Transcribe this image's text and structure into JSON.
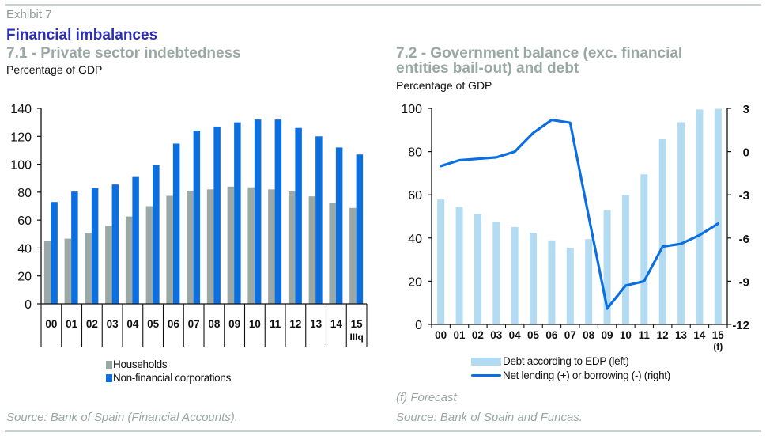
{
  "header": {
    "exhibit": "Exhibit 7",
    "title": "Financial imbalances"
  },
  "colors": {
    "households": "#9ba9a6",
    "corporations": "#0b6fe0",
    "debt": "#b3dcf3",
    "net_lending": "#0b6fe0",
    "title": "#2a2db8",
    "subtitle": "#9aa8a4"
  },
  "panel1": {
    "title": "7.1 - Private sector indebtedness",
    "unit": "Percentage of GDP",
    "source": "Source: Bank of Spain (Financial Accounts).",
    "legend": [
      "Households",
      "Non-financial corporations"
    ]
  },
  "panel2": {
    "title_line1": "7.2 - Government balance (exc. financial",
    "title_line2": "entities bail-out) and debt",
    "unit": "Percentage of GDP",
    "note": "(f) Forecast",
    "source": "Source: Bank of Spain and Funcas.",
    "legend": [
      "Debt according to EDP (left)",
      "Net lending (+) or borrowing (-) (right)"
    ]
  },
  "chart_data": [
    {
      "type": "bar",
      "title": "7.1 - Private sector indebtedness",
      "ylabel": "Percentage of GDP",
      "xlabel": "",
      "ylim": [
        0,
        140
      ],
      "yticks": [
        0,
        20,
        40,
        60,
        80,
        100,
        120,
        140
      ],
      "grid": false,
      "legend_position": "bottom",
      "categories": [
        "00",
        "01",
        "02",
        "03",
        "04",
        "05",
        "06",
        "07",
        "08",
        "09",
        "10",
        "11",
        "12",
        "13",
        "14",
        "15"
      ],
      "category_sublabels": {
        "15": "IIIq"
      },
      "series": [
        {
          "name": "Households",
          "values": [
            44.8,
            46.7,
            51.0,
            55.8,
            62.6,
            70.0,
            77.4,
            81.0,
            82.0,
            84.0,
            83.5,
            82.0,
            80.5,
            77.0,
            72.5,
            68.7
          ]
        },
        {
          "name": "Non-financial corporations",
          "values": [
            73.0,
            80.4,
            82.9,
            85.5,
            90.9,
            99.4,
            114.8,
            124.0,
            127.0,
            130.0,
            132.0,
            132.0,
            126.0,
            120.0,
            112.0,
            107.0
          ]
        }
      ]
    },
    {
      "type": "bar",
      "combo": "bar+line (dual axis)",
      "title": "7.2 - Government balance (exc. financial entities bail-out) and debt",
      "ylabel": "Percentage of GDP",
      "xlabel": "",
      "ylim": [
        0,
        100
      ],
      "yticks": [
        0,
        20,
        40,
        60,
        80,
        100
      ],
      "y2lim": [
        -12,
        3
      ],
      "y2ticks": [
        -12,
        -9,
        -6,
        -3,
        0,
        3
      ],
      "grid": false,
      "legend_position": "bottom",
      "categories": [
        "00",
        "01",
        "02",
        "03",
        "04",
        "05",
        "06",
        "07",
        "08",
        "09",
        "10",
        "11",
        "12",
        "13",
        "14",
        "15"
      ],
      "category_sublabels": {
        "15": "(f)"
      },
      "series": [
        {
          "name": "Debt according to EDP (left)",
          "type": "bar",
          "axis": "left",
          "values": [
            57.8,
            54.4,
            51.1,
            47.6,
            45.1,
            42.4,
            38.9,
            35.5,
            39.5,
            52.9,
            59.9,
            69.5,
            85.7,
            93.6,
            99.5,
            99.8
          ]
        },
        {
          "name": "Net lending (+) or borrowing (-) (right)",
          "type": "line",
          "axis": "right",
          "values": [
            -1.0,
            -0.6,
            -0.5,
            -0.4,
            0.0,
            1.3,
            2.2,
            2.0,
            -4.5,
            -10.9,
            -9.3,
            -9.0,
            -6.6,
            -6.4,
            -5.8,
            -5.0
          ]
        }
      ]
    }
  ]
}
